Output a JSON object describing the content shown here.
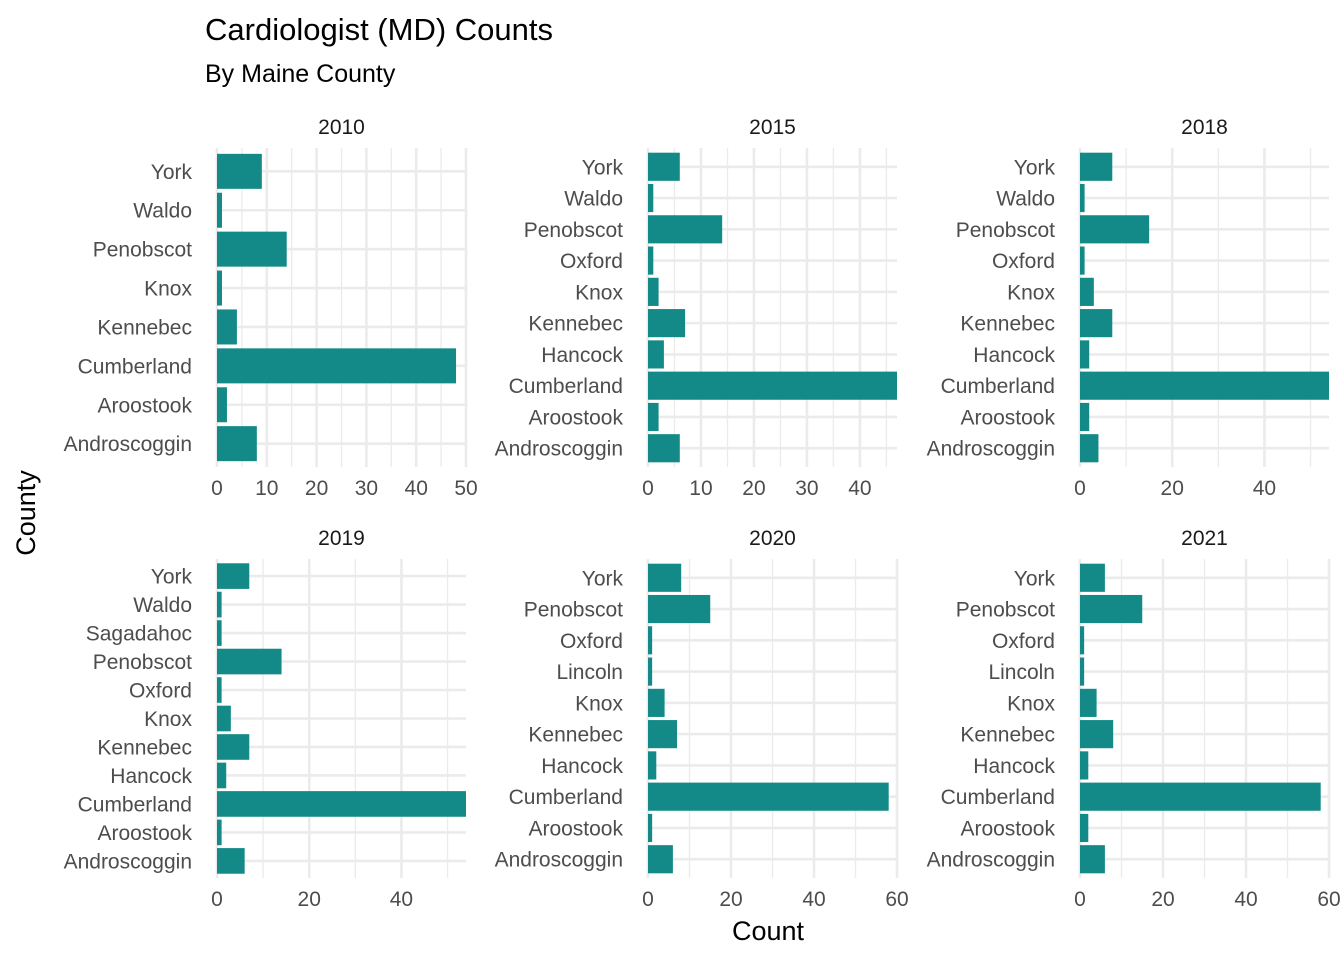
{
  "title": "Cardiologist (MD) Counts",
  "subtitle": "By Maine County",
  "xlabel": "Count",
  "ylabel": "County",
  "colors": {
    "bar": "#138a87",
    "grid": "#ebebeb",
    "background": "#ffffff"
  },
  "chart_data": [
    {
      "type": "bar",
      "orientation": "horizontal",
      "panel": "2010",
      "categories": [
        "Androscoggin",
        "Aroostook",
        "Cumberland",
        "Kennebec",
        "Knox",
        "Penobscot",
        "Waldo",
        "York"
      ],
      "values": [
        8,
        2,
        48,
        4,
        1,
        14,
        1,
        9
      ],
      "xlim": [
        0,
        50
      ],
      "xticks": [
        0,
        10,
        20,
        30,
        40,
        50
      ],
      "grid": true
    },
    {
      "type": "bar",
      "orientation": "horizontal",
      "panel": "2015",
      "categories": [
        "Androscoggin",
        "Aroostook",
        "Cumberland",
        "Hancock",
        "Kennebec",
        "Knox",
        "Oxford",
        "Penobscot",
        "Waldo",
        "York"
      ],
      "values": [
        6,
        2,
        47,
        3,
        7,
        2,
        1,
        14,
        1,
        6
      ],
      "xlim": [
        0,
        47
      ],
      "xticks": [
        0,
        10,
        20,
        30,
        40
      ],
      "grid": true
    },
    {
      "type": "bar",
      "orientation": "horizontal",
      "panel": "2018",
      "categories": [
        "Androscoggin",
        "Aroostook",
        "Cumberland",
        "Hancock",
        "Kennebec",
        "Knox",
        "Oxford",
        "Penobscot",
        "Waldo",
        "York"
      ],
      "values": [
        4,
        2,
        54,
        2,
        7,
        3,
        1,
        15,
        1,
        7
      ],
      "xlim": [
        0,
        54
      ],
      "xticks": [
        0,
        20,
        40
      ],
      "grid": true
    },
    {
      "type": "bar",
      "orientation": "horizontal",
      "panel": "2019",
      "categories": [
        "Androscoggin",
        "Aroostook",
        "Cumberland",
        "Hancock",
        "Kennebec",
        "Knox",
        "Oxford",
        "Penobscot",
        "Sagadahoc",
        "Waldo",
        "York"
      ],
      "values": [
        6,
        1,
        54,
        2,
        7,
        3,
        1,
        14,
        1,
        1,
        7
      ],
      "xlim": [
        0,
        54
      ],
      "xticks": [
        0,
        20,
        40
      ],
      "grid": true
    },
    {
      "type": "bar",
      "orientation": "horizontal",
      "panel": "2020",
      "categories": [
        "Androscoggin",
        "Aroostook",
        "Cumberland",
        "Hancock",
        "Kennebec",
        "Knox",
        "Lincoln",
        "Oxford",
        "Penobscot",
        "York"
      ],
      "values": [
        6,
        1,
        58,
        2,
        7,
        4,
        1,
        1,
        15,
        8
      ],
      "xlim": [
        0,
        60
      ],
      "xticks": [
        0,
        20,
        40,
        60
      ],
      "grid": true
    },
    {
      "type": "bar",
      "orientation": "horizontal",
      "panel": "2021",
      "categories": [
        "Androscoggin",
        "Aroostook",
        "Cumberland",
        "Hancock",
        "Kennebec",
        "Knox",
        "Lincoln",
        "Oxford",
        "Penobscot",
        "York"
      ],
      "values": [
        6,
        2,
        58,
        2,
        8,
        4,
        1,
        1,
        15,
        6
      ],
      "xlim": [
        0,
        60
      ],
      "xticks": [
        0,
        20,
        40,
        60
      ],
      "grid": true
    }
  ]
}
